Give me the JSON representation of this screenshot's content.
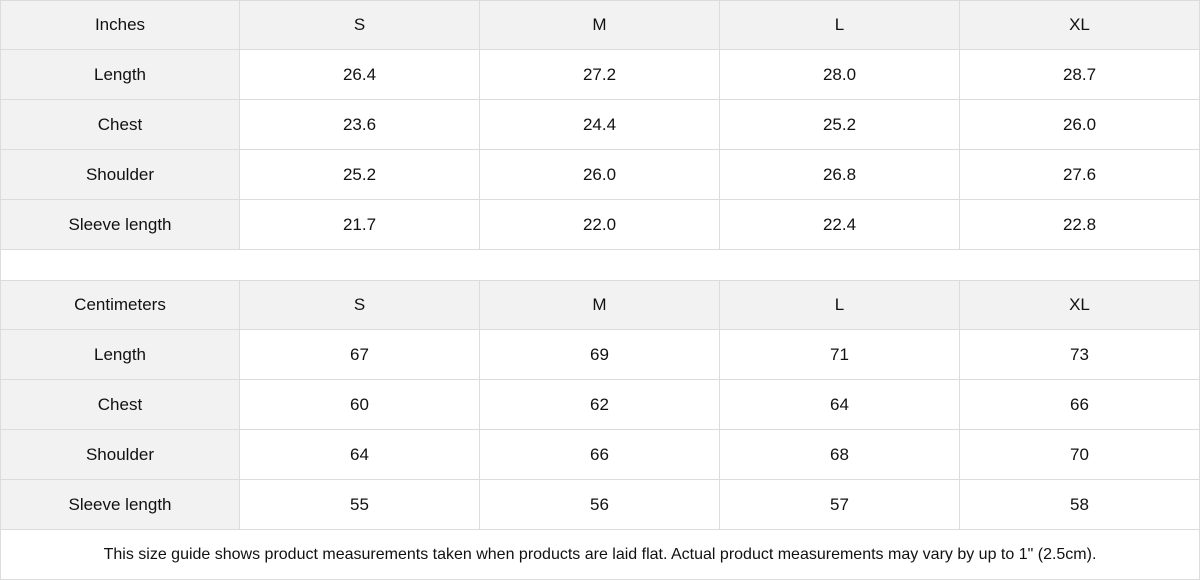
{
  "tables": [
    {
      "unit_label": "Inches",
      "sizes": [
        "S",
        "M",
        "L",
        "XL"
      ],
      "rows": [
        {
          "label": "Length",
          "values": [
            "26.4",
            "27.2",
            "28.0",
            "28.7"
          ]
        },
        {
          "label": "Chest",
          "values": [
            "23.6",
            "24.4",
            "25.2",
            "26.0"
          ]
        },
        {
          "label": "Shoulder",
          "values": [
            "25.2",
            "26.0",
            "26.8",
            "27.6"
          ]
        },
        {
          "label": "Sleeve length",
          "values": [
            "21.7",
            "22.0",
            "22.4",
            "22.8"
          ]
        }
      ]
    },
    {
      "unit_label": "Centimeters",
      "sizes": [
        "S",
        "M",
        "L",
        "XL"
      ],
      "rows": [
        {
          "label": "Length",
          "values": [
            "67",
            "69",
            "71",
            "73"
          ]
        },
        {
          "label": "Chest",
          "values": [
            "60",
            "62",
            "64",
            "66"
          ]
        },
        {
          "label": "Shoulder",
          "values": [
            "64",
            "66",
            "68",
            "70"
          ]
        },
        {
          "label": "Sleeve length",
          "values": [
            "55",
            "56",
            "57",
            "58"
          ]
        }
      ]
    }
  ],
  "note": "This size guide shows product measurements taken when products are laid flat.  Actual product measurements may vary by up to 1\" (2.5cm)."
}
